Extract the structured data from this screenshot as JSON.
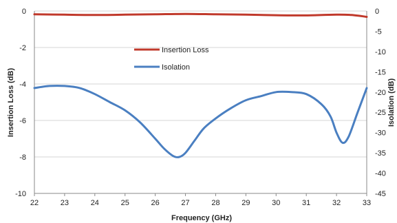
{
  "chart_data": {
    "type": "line",
    "title": "",
    "xlabel": "Frequency (GHz)",
    "ylabel_left": "Insertion Loss (dB)",
    "ylabel_right": "Isolation (dB)",
    "xlim": [
      22,
      33
    ],
    "ylim_left": [
      -10,
      0
    ],
    "ylim_right": [
      -45,
      0
    ],
    "x_ticks": [
      "22",
      "23",
      "24",
      "25",
      "26",
      "27",
      "28",
      "29",
      "30",
      "31",
      "32",
      "33"
    ],
    "y_left_ticks": [
      "0",
      "-2",
      "-4",
      "-6",
      "-8",
      "-10"
    ],
    "y_right_ticks": [
      "0",
      "-5",
      "-10",
      "-15",
      "-20",
      "-25",
      "-30",
      "-35",
      "-40",
      "-45"
    ],
    "grid": "horizontal",
    "legend_position": "upper-center",
    "series": [
      {
        "name": "Insertion Loss",
        "axis": "left",
        "color": "#c0392b",
        "x": [
          22,
          23,
          24,
          25,
          26,
          27,
          28,
          29,
          30,
          31,
          32,
          32.5,
          33
        ],
        "y": [
          -0.18,
          -0.2,
          -0.22,
          -0.2,
          -0.18,
          -0.16,
          -0.18,
          -0.2,
          -0.23,
          -0.24,
          -0.2,
          -0.22,
          -0.32
        ]
      },
      {
        "name": "Isolation",
        "axis": "right",
        "color": "#4a7fc1",
        "x": [
          22,
          22.5,
          23,
          23.5,
          24,
          24.5,
          25,
          25.5,
          26,
          26.3,
          26.6,
          26.8,
          27,
          27.3,
          27.6,
          28,
          28.5,
          29,
          29.5,
          30,
          30.5,
          31,
          31.5,
          31.8,
          32,
          32.2,
          32.4,
          32.7,
          33
        ],
        "y": [
          -19,
          -18.5,
          -18.5,
          -19,
          -20.5,
          -22.5,
          -24.5,
          -27.5,
          -31.5,
          -34,
          -35.8,
          -36,
          -35,
          -32,
          -29,
          -26.5,
          -24,
          -22,
          -21,
          -20,
          -20,
          -20.5,
          -23,
          -26,
          -30,
          -32.5,
          -31,
          -25,
          -19
        ]
      }
    ]
  }
}
